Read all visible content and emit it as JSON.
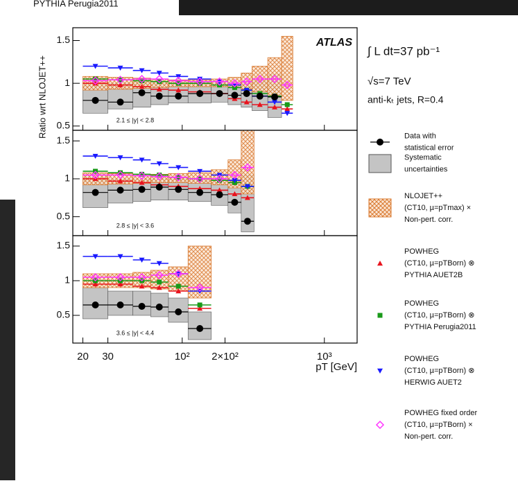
{
  "background_text": "PYTHIA  Perugia2011",
  "chart_data": {
    "type": "ratio-panels",
    "ylabel": "Ratio wrt NLOJET++",
    "xlabel": "pT [GeV]",
    "log_x": true,
    "xlim": [
      17,
      1700
    ],
    "xticks": [
      20,
      30,
      {
        "value": 100,
        "label": "10²"
      },
      {
        "value": 200,
        "label": "2×10²"
      },
      {
        "value": 1000,
        "label": "10³"
      }
    ],
    "experiment": "ATLAS",
    "annotations": [
      "∫ L dt=37 pb⁻¹",
      "√s=7 TeV",
      "anti-kₜ jets, R=0.4"
    ],
    "legend": [
      {
        "lines": [
          "Data with",
          "statistical error"
        ],
        "color": "#000000",
        "marker": "data"
      },
      {
        "lines": [
          "Systematic",
          "uncertainties"
        ],
        "color": "#c4c4c4",
        "marker": "box"
      },
      {
        "lines": [
          "NLOJET++",
          "(CT10, µ=pTmax) ×",
          "Non-pert. corr."
        ],
        "color": "#d9782e",
        "marker": "hatch"
      },
      {
        "lines": [
          "POWHEG",
          "(CT10, µ=pTBorn) ⊗",
          "PYTHIA  AUET2B"
        ],
        "color": "#e8141e",
        "marker": "triangle"
      },
      {
        "lines": [
          "POWHEG",
          "(CT10, µ=pTBorn) ⊗",
          "PYTHIA  Perugia2011"
        ],
        "color": "#1a9a1a",
        "marker": "square"
      },
      {
        "lines": [
          "POWHEG",
          "(CT10, µ=pTBorn) ⊗",
          "HERWIG  AUET2"
        ],
        "color": "#1a1aff",
        "marker": "down-triangle"
      },
      {
        "lines": [
          "POWHEG fixed order",
          "(CT10, µ=pTBorn) ×",
          "Non-pert. corr."
        ],
        "color": "#ff33ff",
        "marker": "diamond"
      }
    ],
    "panels": [
      {
        "label": "2.1 ≤ |y| < 2.8",
        "ylim": [
          0.45,
          1.65
        ],
        "yticks": [
          0.5,
          1,
          1.5
        ],
        "bins": [
          20,
          30,
          45,
          60,
          80,
          110,
          160,
          210,
          260,
          310,
          400,
          500,
          600
        ],
        "x": [
          24.5,
          36.7,
          52,
          69,
          94,
          133,
          183,
          234,
          284,
          352,
          447,
          548
        ],
        "data": [
          0.8,
          0.78,
          0.89,
          0.85,
          0.85,
          0.88,
          0.88,
          0.86,
          0.88,
          0.85,
          0.84,
          null
        ],
        "systematic": {
          "low": [
            0.65,
            0.7,
            0.72,
            0.75,
            0.77,
            0.77,
            0.78,
            0.75,
            0.72,
            0.68,
            0.6,
            null
          ],
          "high": [
            1.0,
            1.0,
            1.02,
            1.0,
            1.0,
            1.0,
            1.0,
            1.0,
            1.02,
            1.05,
            1.1,
            null
          ]
        },
        "nlojet": {
          "low": [
            0.92,
            0.93,
            0.94,
            0.95,
            0.96,
            0.96,
            0.96,
            0.95,
            0.93,
            0.9,
            0.85,
            0.8
          ],
          "high": [
            1.08,
            1.07,
            1.06,
            1.05,
            1.04,
            1.04,
            1.05,
            1.07,
            1.12,
            1.2,
            1.3,
            1.55
          ]
        },
        "series": [
          {
            "values": [
              1.0,
              0.98,
              0.96,
              0.93,
              0.92,
              0.9,
              0.88,
              0.82,
              0.78,
              0.75,
              0.72,
              0.7
            ]
          },
          {
            "values": [
              1.05,
              1.04,
              1.03,
              1.02,
              1.0,
              1.0,
              0.98,
              0.95,
              0.92,
              0.88,
              0.85,
              0.75
            ]
          },
          {
            "values": [
              1.2,
              1.18,
              1.15,
              1.12,
              1.08,
              1.05,
              1.02,
              0.98,
              0.92,
              0.85,
              0.78,
              0.65
            ]
          },
          {
            "values": [
              1.03,
              1.04,
              1.05,
              1.05,
              1.03,
              1.02,
              1.02,
              1.0,
              1.02,
              1.05,
              1.05,
              0.98
            ]
          }
        ]
      },
      {
        "label": "2.8 ≤ |y| < 3.6",
        "ylim": [
          0.25,
          1.64
        ],
        "yticks": [
          0.5,
          1,
          1.5
        ],
        "bins": [
          20,
          30,
          45,
          60,
          80,
          110,
          160,
          210,
          260,
          320
        ],
        "x": [
          24.5,
          36.7,
          52,
          69,
          94,
          133,
          183,
          234,
          288
        ],
        "data": [
          0.82,
          0.85,
          0.86,
          0.89,
          0.86,
          0.82,
          0.79,
          0.69,
          0.44
        ],
        "systematic": {
          "low": [
            0.62,
            0.68,
            0.7,
            0.72,
            0.72,
            0.7,
            0.65,
            0.55,
            0.3
          ],
          "high": [
            1.02,
            1.0,
            1.0,
            1.0,
            1.0,
            1.0,
            1.0,
            1.0,
            1.05
          ]
        },
        "nlojet": {
          "low": [
            0.92,
            0.93,
            0.94,
            0.95,
            0.95,
            0.94,
            0.92,
            0.88,
            0.8
          ],
          "high": [
            1.08,
            1.07,
            1.06,
            1.06,
            1.07,
            1.08,
            1.12,
            1.25,
            1.64
          ]
        },
        "series": [
          {
            "values": [
              1.0,
              0.97,
              0.95,
              0.92,
              0.9,
              0.87,
              0.85,
              0.8,
              0.75
            ]
          },
          {
            "values": [
              1.1,
              1.08,
              1.06,
              1.05,
              1.02,
              1.0,
              0.98,
              0.95,
              0.9
            ]
          },
          {
            "values": [
              1.3,
              1.28,
              1.25,
              1.2,
              1.15,
              1.1,
              1.05,
              0.98,
              0.9
            ]
          },
          {
            "values": [
              1.05,
              1.05,
              1.04,
              1.03,
              1.02,
              1.0,
              1.0,
              1.05,
              1.15
            ]
          }
        ]
      },
      {
        "label": "3.6 ≤ |y| < 4.4",
        "ylim": [
          0.1,
          1.65
        ],
        "yticks": [
          0.5,
          1,
          1.5
        ],
        "bins": [
          20,
          30,
          45,
          60,
          80,
          110,
          160
        ],
        "x": [
          24.5,
          36.7,
          52,
          69,
          94,
          133
        ],
        "data": [
          0.65,
          0.65,
          0.63,
          0.62,
          0.55,
          0.31
        ],
        "systematic": {
          "low": [
            0.45,
            0.5,
            0.5,
            0.48,
            0.4,
            0.15
          ],
          "high": [
            0.9,
            0.85,
            0.85,
            0.82,
            0.75,
            0.55
          ]
        },
        "nlojet": {
          "low": [
            0.9,
            0.9,
            0.9,
            0.88,
            0.85,
            0.75
          ],
          "high": [
            1.1,
            1.1,
            1.12,
            1.15,
            1.2,
            1.5
          ]
        },
        "series": [
          {
            "values": [
              0.95,
              0.95,
              0.92,
              0.9,
              0.85,
              0.6
            ]
          },
          {
            "values": [
              1.0,
              1.0,
              1.0,
              0.98,
              0.92,
              0.65
            ]
          },
          {
            "values": [
              1.35,
              1.35,
              1.3,
              1.25,
              1.1,
              0.85
            ]
          },
          {
            "values": [
              1.05,
              1.05,
              1.05,
              1.08,
              1.1,
              0.9
            ]
          }
        ]
      }
    ]
  }
}
